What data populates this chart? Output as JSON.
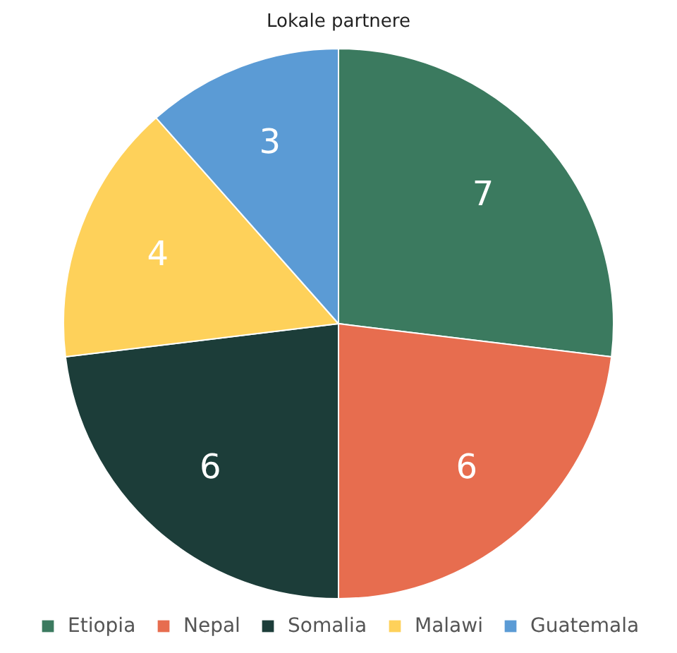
{
  "chart_data": {
    "type": "pie",
    "title": "Lokale partnere",
    "categories": [
      "Etiopia",
      "Nepal",
      "Somalia",
      "Malawi",
      "Guatemala"
    ],
    "values": [
      7,
      6,
      6,
      4,
      3
    ],
    "colors": [
      "#3b7a5f",
      "#e76d4f",
      "#1c3d39",
      "#fed15a",
      "#5b9bd5"
    ],
    "data_labels": true,
    "legend": "bottom"
  }
}
